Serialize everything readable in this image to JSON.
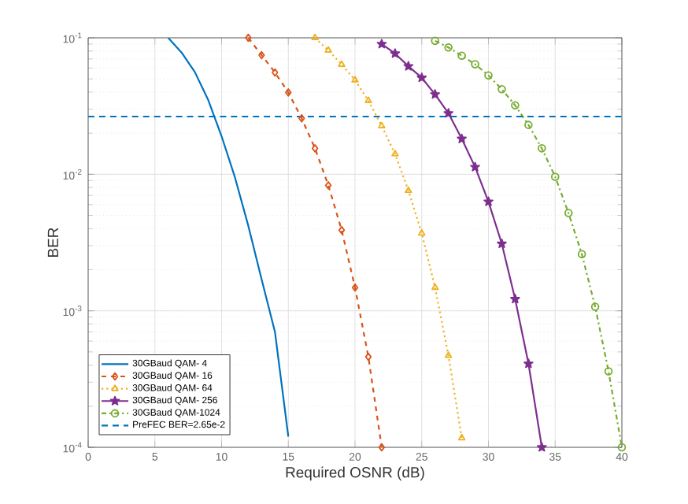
{
  "chart_data": {
    "type": "line",
    "xlabel": "Required OSNR (dB)",
    "ylabel": "BER",
    "log": "y",
    "grid": true,
    "legend": "bottom left",
    "xlim": [
      0,
      40
    ],
    "xticks": [
      0,
      5,
      10,
      15,
      20,
      25,
      30,
      35,
      40
    ],
    "ylim": [
      0.0001,
      0.1
    ],
    "yticks": [
      {
        "value": 0.0001,
        "label": "10$^{-4}$"
      },
      {
        "value": 0.001,
        "label": "10$^{-3}$"
      },
      {
        "value": 0.01,
        "label": "10$^{-2}$"
      },
      {
        "value": 0.1,
        "label": "10$^{-1}$"
      }
    ],
    "series": [
      {
        "name": "30GBaud QAM- 4",
        "color": "#0072bd",
        "marker": "none",
        "line_style": "solid",
        "x": [
          6,
          7,
          8,
          9,
          10,
          11,
          12,
          13,
          14,
          15
        ],
        "values": [
          0.1,
          0.078,
          0.056,
          0.035,
          0.019,
          0.0095,
          0.0042,
          0.0017,
          0.0007,
          0.00012
        ]
      },
      {
        "name": "30GBaud QAM- 16",
        "color": "#d95319",
        "marker": "diamond",
        "line_style": "dashed",
        "x": [
          12,
          13,
          14,
          15,
          16,
          17,
          18,
          19,
          20,
          21,
          22
        ],
        "values": [
          0.1,
          0.0746,
          0.0557,
          0.0398,
          0.0257,
          0.0155,
          0.0083,
          0.0039,
          0.00148,
          0.00046,
          0.0001
        ]
      },
      {
        "name": "30GBaud QAM- 64",
        "color": "#edb120",
        "marker": "triangle",
        "line_style": "dotted",
        "x": [
          17,
          18,
          19,
          20,
          21,
          22,
          23,
          24,
          25,
          26,
          27,
          28
        ],
        "values": [
          0.1,
          0.081,
          0.0637,
          0.049,
          0.0346,
          0.0226,
          0.0141,
          0.0076,
          0.0037,
          0.00148,
          0.00047,
          0.000117
        ]
      },
      {
        "name": "30GBaud QAM- 256",
        "color": "#7e2f8e",
        "marker": "star",
        "line_style": "solid",
        "x": [
          22,
          23,
          24,
          25,
          26,
          27,
          28,
          29,
          30,
          31,
          32,
          33,
          34
        ],
        "values": [
          0.09,
          0.0767,
          0.0619,
          0.051,
          0.0385,
          0.028,
          0.0182,
          0.0113,
          0.0063,
          0.0031,
          0.00122,
          0.00041,
          0.0001
        ]
      },
      {
        "name": "30GBaud QAM-1024",
        "color": "#77ac30",
        "marker": "circle",
        "line_style": "dashdot",
        "x": [
          26,
          27,
          28,
          29,
          30,
          31,
          32,
          33,
          34,
          35,
          36,
          37,
          38,
          39,
          40
        ],
        "values": [
          0.095,
          0.085,
          0.074,
          0.064,
          0.053,
          0.042,
          0.032,
          0.023,
          0.0155,
          0.0096,
          0.0052,
          0.0026,
          0.00107,
          0.00036,
          0.0001
        ]
      }
    ],
    "ref_lines": [
      {
        "axis": "y",
        "value": 0.0265,
        "label": "PreFEC BER=2.65e-2",
        "color": "#0072bd",
        "line_style": "dashed"
      }
    ]
  }
}
